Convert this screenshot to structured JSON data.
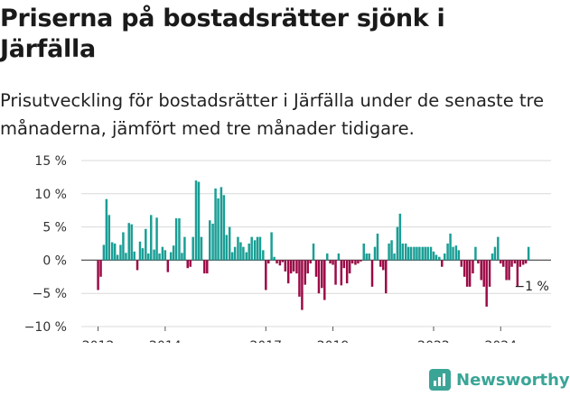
{
  "header": {
    "title": "Priserna på bostadsrätter sjönk i Järfälla",
    "subtitle": "Prisutveckling för bostadsrätter i Järfälla under de senaste tre månaderna, jämfört med tre månader tidigare."
  },
  "brand": {
    "name": "Newsworthy",
    "color": "#3aa597"
  },
  "chart_data": {
    "type": "bar",
    "positive_color": "#1a9e95",
    "negative_color": "#9b0a46",
    "ylim": [
      -10,
      15
    ],
    "yticks": [
      15,
      10,
      5,
      0,
      -5,
      -10
    ],
    "ytick_labels": [
      "15 %",
      "10 %",
      "5 %",
      "0 %",
      "−5 %",
      "−10 %"
    ],
    "xlim": [
      2011.5,
      2025.5
    ],
    "xticks": [
      2012,
      2014,
      2017,
      2019,
      2022,
      2024
    ],
    "xtick_labels": [
      "2012",
      "2014",
      "2017",
      "2019",
      "2022",
      "2024"
    ],
    "grid": true,
    "annotation": {
      "text": "−1 %",
      "x": 2025.0,
      "y": -1
    },
    "x": [
      2012.0,
      2012.08,
      2012.17,
      2012.25,
      2012.33,
      2012.42,
      2012.5,
      2012.58,
      2012.67,
      2012.75,
      2012.83,
      2012.92,
      2013.0,
      2013.08,
      2013.17,
      2013.25,
      2013.33,
      2013.42,
      2013.5,
      2013.58,
      2013.67,
      2013.75,
      2013.83,
      2013.92,
      2014.0,
      2014.08,
      2014.17,
      2014.25,
      2014.33,
      2014.42,
      2014.5,
      2014.58,
      2014.67,
      2014.75,
      2014.83,
      2014.92,
      2015.0,
      2015.08,
      2015.17,
      2015.25,
      2015.33,
      2015.42,
      2015.5,
      2015.58,
      2015.67,
      2015.75,
      2015.83,
      2015.92,
      2016.0,
      2016.08,
      2016.17,
      2016.25,
      2016.33,
      2016.42,
      2016.5,
      2016.58,
      2016.67,
      2016.75,
      2016.83,
      2016.92,
      2017.0,
      2017.08,
      2017.17,
      2017.25,
      2017.33,
      2017.42,
      2017.5,
      2017.58,
      2017.67,
      2017.75,
      2017.83,
      2017.92,
      2018.0,
      2018.08,
      2018.17,
      2018.25,
      2018.33,
      2018.42,
      2018.5,
      2018.58,
      2018.67,
      2018.75,
      2018.83,
      2018.92,
      2019.0,
      2019.08,
      2019.17,
      2019.25,
      2019.33,
      2019.42,
      2019.5,
      2019.58,
      2019.67,
      2019.75,
      2019.83,
      2019.92,
      2020.0,
      2020.08,
      2020.17,
      2020.25,
      2020.33,
      2020.42,
      2020.5,
      2020.58,
      2020.67,
      2020.75,
      2020.83,
      2020.92,
      2021.0,
      2021.08,
      2021.17,
      2021.25,
      2021.33,
      2021.42,
      2021.5,
      2021.58,
      2021.67,
      2021.75,
      2021.83,
      2021.92,
      2022.0,
      2022.08,
      2022.17,
      2022.25,
      2022.33,
      2022.42,
      2022.5,
      2022.58,
      2022.67,
      2022.75,
      2022.83,
      2022.92,
      2023.0,
      2023.08,
      2023.17,
      2023.25,
      2023.33,
      2023.42,
      2023.5,
      2023.58,
      2023.67,
      2023.75,
      2023.83,
      2023.92,
      2024.0,
      2024.08,
      2024.17,
      2024.25,
      2024.33,
      2024.42,
      2024.5,
      2024.58,
      2024.67,
      2024.75,
      2024.83
    ],
    "values": [
      -4.5,
      -2.5,
      2.3,
      9.2,
      6.8,
      2.7,
      2.5,
      0.8,
      2.3,
      4.2,
      1.1,
      5.6,
      5.4,
      1.3,
      -1.5,
      2.8,
      1.8,
      4.7,
      1.0,
      6.8,
      1.6,
      6.4,
      1.0,
      2.0,
      1.5,
      -1.8,
      1.2,
      2.2,
      6.3,
      6.3,
      1.1,
      3.5,
      -1.2,
      -1.0,
      3.5,
      12.0,
      11.8,
      3.5,
      -2.0,
      -2.0,
      6.0,
      5.5,
      10.8,
      9.3,
      11.0,
      9.8,
      3.8,
      5.0,
      1.2,
      2.0,
      3.5,
      2.7,
      2.0,
      1.2,
      2.5,
      3.5,
      3.0,
      3.5,
      3.5,
      1.5,
      -4.5,
      -0.5,
      4.2,
      0.5,
      -0.5,
      -0.8,
      -0.3,
      -1.7,
      -3.5,
      -2.0,
      -1.7,
      -2.0,
      -5.5,
      -7.5,
      -3.7,
      -2.0,
      -0.5,
      2.5,
      -2.5,
      -5.0,
      -4.2,
      -6.0,
      1.0,
      -0.5,
      -0.7,
      -3.7,
      1.0,
      -3.8,
      -1.2,
      -3.5,
      -2.0,
      -0.5,
      -0.7,
      -0.5,
      -0.2,
      2.5,
      1.0,
      1.0,
      -4.0,
      2.0,
      4.0,
      -1.0,
      -1.5,
      -5.0,
      2.5,
      3.0,
      1.0,
      5.0,
      7.0,
      2.5,
      2.5,
      2.0,
      2.0,
      2.0,
      2.0,
      2.0,
      2.0,
      2.0,
      2.0,
      2.0,
      1.3,
      0.8,
      0.5,
      -1.0,
      1.0,
      2.5,
      4.0,
      2.0,
      2.2,
      1.5,
      -1.0,
      -2.5,
      -4.0,
      -4.0,
      -2.0,
      2.0,
      -0.5,
      -3.0,
      -4.0,
      -7.0,
      -4.0,
      1.0,
      2.0,
      3.5,
      -0.5,
      -1.0,
      -3.0,
      -3.0,
      -1.0,
      -0.5,
      -4.0,
      -1.0,
      -0.7,
      -0.5,
      2.0
    ]
  }
}
